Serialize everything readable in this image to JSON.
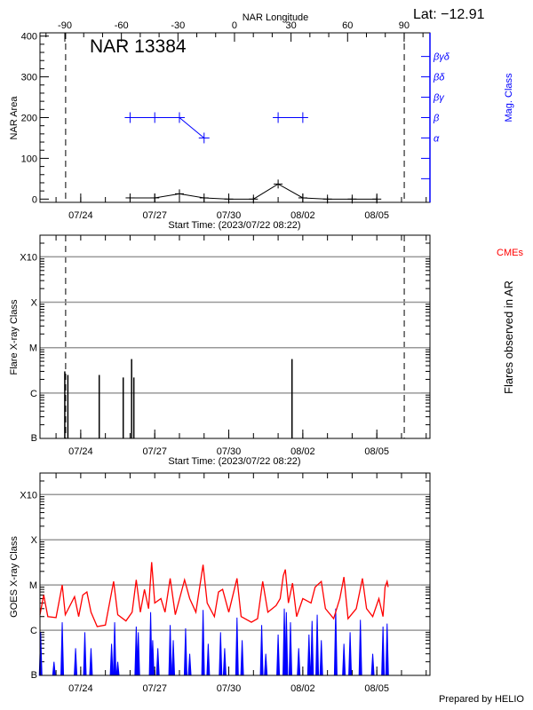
{
  "header": {
    "lat_label": "Lat: −12.91",
    "prepared_by": "Prepared by HELIO"
  },
  "colors": {
    "axis": "#000000",
    "grid": "#999999",
    "mag_class": "#0000ff",
    "goes_long": "#ff0000",
    "goes_short": "#0000ff",
    "cme_label": "#ff0000"
  },
  "chart_data": [
    {
      "type": "line",
      "title": "NAR 13384",
      "xlabel": "Start Time: (2023/07/22 08:22)",
      "ylabel": "NAR Area",
      "y2label": "Mag. Class",
      "top_axis_label": "NAR Longitude",
      "xlim": [
        "2023-07-22T08:22",
        "2023-08-07T03:40"
      ],
      "ylim": [
        -8,
        408
      ],
      "yticks": [
        "0",
        "100",
        "200",
        "300",
        "400"
      ],
      "xticks": [
        {
          "date": "2023-07-24T00:00",
          "label": "07/24"
        },
        {
          "date": "2023-07-27T00:00",
          "label": "07/27"
        },
        {
          "date": "2023-07-30T00:00",
          "label": "07/30"
        },
        {
          "date": "2023-08-02T00:00",
          "label": "08/02"
        },
        {
          "date": "2023-08-05T00:00",
          "label": "08/05"
        }
      ],
      "longitude_axis": {
        "xlim": [
          -103.2,
          103.7
        ],
        "ticks": [
          "-90",
          "-60",
          "-30",
          "0",
          "30",
          "60",
          "90"
        ]
      },
      "limb_lines": [
        "2023-07-23T09:20",
        "2023-08-06T02:40"
      ],
      "mag_class_axis": [
        {
          "value": 50,
          "label": ""
        },
        {
          "value": 100,
          "label": ""
        },
        {
          "value": 150,
          "label": "α"
        },
        {
          "value": 200,
          "label": "β"
        },
        {
          "value": 250,
          "label": "βγ"
        },
        {
          "value": 300,
          "label": "βδ"
        },
        {
          "value": 350,
          "label": "βγδ"
        }
      ],
      "area_series": [
        [
          "2023-07-26T00:00",
          3
        ],
        [
          "2023-07-27T00:00",
          3
        ],
        [
          "2023-07-28T00:00",
          13
        ],
        [
          "2023-07-29T00:00",
          3
        ],
        [
          "2023-07-30T00:00",
          0
        ],
        [
          "2023-07-31T00:00",
          0
        ],
        [
          "2023-08-01T00:00",
          37
        ],
        [
          "2023-08-02T00:00",
          3
        ],
        [
          "2023-08-03T00:00",
          0
        ],
        [
          "2023-08-04T00:00",
          0
        ],
        [
          "2023-08-05T00:00",
          0
        ]
      ],
      "mag_class_series": [
        [
          [
            "2023-07-26T00:00",
            "β"
          ],
          [
            "2023-07-27T00:00",
            "β"
          ],
          [
            "2023-07-28T00:00",
            "β"
          ],
          [
            "2023-07-29T00:00",
            "α"
          ]
        ],
        [
          [
            "2023-08-01T00:00",
            "β"
          ],
          [
            "2023-08-02T00:00",
            "β"
          ]
        ]
      ]
    },
    {
      "type": "bar",
      "xlabel": "Start Time: (2023/07/22 08:22)",
      "ylabel": "Flare X-ray Class",
      "y2label": "Flares observed in AR",
      "legend": "CMEs",
      "yscale": "log",
      "ylim": [
        1e-07,
        0.003
      ],
      "yticks": [
        {
          "value": 1e-07,
          "label": "B"
        },
        {
          "value": 1e-06,
          "label": "C"
        },
        {
          "value": 1e-05,
          "label": "M"
        },
        {
          "value": 0.0001,
          "label": "X"
        },
        {
          "value": 0.001,
          "label": "X10"
        }
      ],
      "grid": true,
      "flares": [
        [
          "2023-07-23T08:30",
          3e-06
        ],
        [
          "2023-07-23T11:30",
          2.5e-06
        ],
        [
          "2023-07-24T18:00",
          2.5e-06
        ],
        [
          "2023-07-25T17:20",
          2.2e-06
        ],
        [
          "2023-07-26T01:30",
          5.6e-06
        ],
        [
          "2023-07-26T03:40",
          2.2e-06
        ],
        [
          "2023-08-01T13:30",
          5.6e-06
        ]
      ]
    },
    {
      "type": "line",
      "ylabel": "GOES X-ray Class",
      "yscale": "log",
      "ylim": [
        1e-07,
        0.003
      ],
      "yticks": [
        {
          "value": 1e-07,
          "label": "B"
        },
        {
          "value": 1e-06,
          "label": "C"
        },
        {
          "value": 1e-05,
          "label": "M"
        },
        {
          "value": 0.0001,
          "label": "X"
        },
        {
          "value": 0.001,
          "label": "X10"
        }
      ],
      "grid": true,
      "long_channel": [
        [
          "2023-07-22T08:22",
          2.2e-06
        ],
        [
          "2023-07-22T12:00",
          6e-06
        ],
        [
          "2023-07-22T16:00",
          2e-06
        ],
        [
          "2023-07-23T00:00",
          1.9e-06
        ],
        [
          "2023-07-23T06:00",
          1e-05
        ],
        [
          "2023-07-23T09:00",
          2.2e-06
        ],
        [
          "2023-07-23T18:00",
          5.5e-06
        ],
        [
          "2023-07-23T22:00",
          2e-06
        ],
        [
          "2023-07-24T02:00",
          6e-06
        ],
        [
          "2023-07-24T06:00",
          7e-06
        ],
        [
          "2023-07-24T10:00",
          2.5e-06
        ],
        [
          "2023-07-24T16:00",
          1.2e-06
        ],
        [
          "2023-07-25T00:00",
          1.3e-06
        ],
        [
          "2023-07-25T08:00",
          1.2e-05
        ],
        [
          "2023-07-25T12:00",
          2.2e-06
        ],
        [
          "2023-07-25T20:00",
          1.6e-06
        ],
        [
          "2023-07-26T02:00",
          2.5e-06
        ],
        [
          "2023-07-26T06:00",
          1.3e-05
        ],
        [
          "2023-07-26T10:00",
          2.5e-06
        ],
        [
          "2023-07-26T14:00",
          8e-06
        ],
        [
          "2023-07-26T18:00",
          3e-06
        ],
        [
          "2023-07-26T21:00",
          3.2e-05
        ],
        [
          "2023-07-27T00:00",
          4e-06
        ],
        [
          "2023-07-27T06:00",
          5e-06
        ],
        [
          "2023-07-27T10:00",
          2.5e-06
        ],
        [
          "2023-07-27T15:00",
          1.4e-05
        ],
        [
          "2023-07-27T20:00",
          2.2e-06
        ],
        [
          "2023-07-28T05:00",
          1.3e-05
        ],
        [
          "2023-07-28T10:00",
          5e-06
        ],
        [
          "2023-07-28T16:00",
          2.5e-06
        ],
        [
          "2023-07-28T23:00",
          2.8e-05
        ],
        [
          "2023-07-29T03:00",
          4e-06
        ],
        [
          "2023-07-29T10:00",
          2e-06
        ],
        [
          "2023-07-29T14:00",
          7e-06
        ],
        [
          "2023-07-29T18:00",
          8e-06
        ],
        [
          "2023-07-30T00:00",
          2.5e-06
        ],
        [
          "2023-07-30T08:00",
          1.4e-05
        ],
        [
          "2023-07-30T12:00",
          2e-06
        ],
        [
          "2023-07-30T22:00",
          1.5e-06
        ],
        [
          "2023-07-31T04:00",
          1.8e-06
        ],
        [
          "2023-07-31T09:00",
          1.2e-05
        ],
        [
          "2023-07-31T14:00",
          2.5e-06
        ],
        [
          "2023-07-31T22:00",
          3.5e-06
        ],
        [
          "2023-08-01T02:00",
          5e-06
        ],
        [
          "2023-08-01T05:00",
          1.6e-05
        ],
        [
          "2023-08-01T07:00",
          2.2e-05
        ],
        [
          "2023-08-01T10:00",
          4e-06
        ],
        [
          "2023-08-01T14:00",
          1.1e-05
        ],
        [
          "2023-08-01T18:00",
          2e-06
        ],
        [
          "2023-08-02T00:00",
          5e-06
        ],
        [
          "2023-08-02T08:00",
          4e-06
        ],
        [
          "2023-08-02T12:00",
          9e-06
        ],
        [
          "2023-08-02T18:00",
          1.2e-05
        ],
        [
          "2023-08-02T22:00",
          3e-06
        ],
        [
          "2023-08-03T06:00",
          1.8e-06
        ],
        [
          "2023-08-03T12:00",
          5e-06
        ],
        [
          "2023-08-03T16:00",
          1.5e-05
        ],
        [
          "2023-08-03T20:00",
          1.8e-06
        ],
        [
          "2023-08-04T04:00",
          3e-06
        ],
        [
          "2023-08-04T10:00",
          1.4e-05
        ],
        [
          "2023-08-04T14:00",
          3e-06
        ],
        [
          "2023-08-04T20:00",
          2e-06
        ],
        [
          "2023-08-05T02:00",
          5e-06
        ],
        [
          "2023-08-05T06:00",
          2e-06
        ],
        [
          "2023-08-05T08:00",
          9e-06
        ],
        [
          "2023-08-05T10:00",
          1.2e-05
        ],
        [
          "2023-08-05T11:00",
          9e-06
        ]
      ],
      "short_channel": [
        [
          "2023-07-22T09:00",
          9e-07
        ],
        [
          "2023-07-22T22:00",
          2e-07
        ],
        [
          "2023-07-23T06:00",
          1.5e-06
        ],
        [
          "2023-07-23T19:00",
          4e-07
        ],
        [
          "2023-07-24T04:00",
          9e-07
        ],
        [
          "2023-07-24T10:00",
          4e-07
        ],
        [
          "2023-07-25T06:00",
          5e-07
        ],
        [
          "2023-07-25T09:00",
          1.5e-06
        ],
        [
          "2023-07-25T12:00",
          2e-07
        ],
        [
          "2023-07-26T06:00",
          1.2e-06
        ],
        [
          "2023-07-26T08:00",
          9e-07
        ],
        [
          "2023-07-26T20:00",
          2.5e-06
        ],
        [
          "2023-07-26T22:00",
          6e-07
        ],
        [
          "2023-07-27T03:00",
          4e-07
        ],
        [
          "2023-07-27T15:00",
          1.3e-06
        ],
        [
          "2023-07-27T18:00",
          6e-07
        ],
        [
          "2023-07-28T06:00",
          1.1e-06
        ],
        [
          "2023-07-28T10:00",
          3e-07
        ],
        [
          "2023-07-28T23:00",
          2.8e-06
        ],
        [
          "2023-07-29T04:00",
          5e-07
        ],
        [
          "2023-07-29T16:00",
          9e-07
        ],
        [
          "2023-07-29T20:00",
          4e-07
        ],
        [
          "2023-07-30T08:00",
          1.9e-06
        ],
        [
          "2023-07-30T13:00",
          6e-07
        ],
        [
          "2023-07-31T08:00",
          1.3e-06
        ],
        [
          "2023-07-31T12:00",
          3e-07
        ],
        [
          "2023-08-01T00:00",
          8e-07
        ],
        [
          "2023-08-01T06:00",
          3e-06
        ],
        [
          "2023-08-01T08:00",
          2.5e-06
        ],
        [
          "2023-08-01T12:00",
          1.5e-06
        ],
        [
          "2023-08-01T20:00",
          4e-07
        ],
        [
          "2023-08-02T06:00",
          8e-07
        ],
        [
          "2023-08-02T09:00",
          1.6e-06
        ],
        [
          "2023-08-02T14:00",
          2.2e-06
        ],
        [
          "2023-08-02T18:00",
          6e-07
        ],
        [
          "2023-08-03T08:00",
          3e-06
        ],
        [
          "2023-08-03T16:00",
          5e-07
        ],
        [
          "2023-08-03T22:00",
          9e-07
        ],
        [
          "2023-08-04T08:00",
          1.7e-06
        ],
        [
          "2023-08-04T20:00",
          3e-07
        ],
        [
          "2023-08-05T06:00",
          1.2e-06
        ],
        [
          "2023-08-05T10:00",
          1.4e-06
        ]
      ]
    }
  ]
}
